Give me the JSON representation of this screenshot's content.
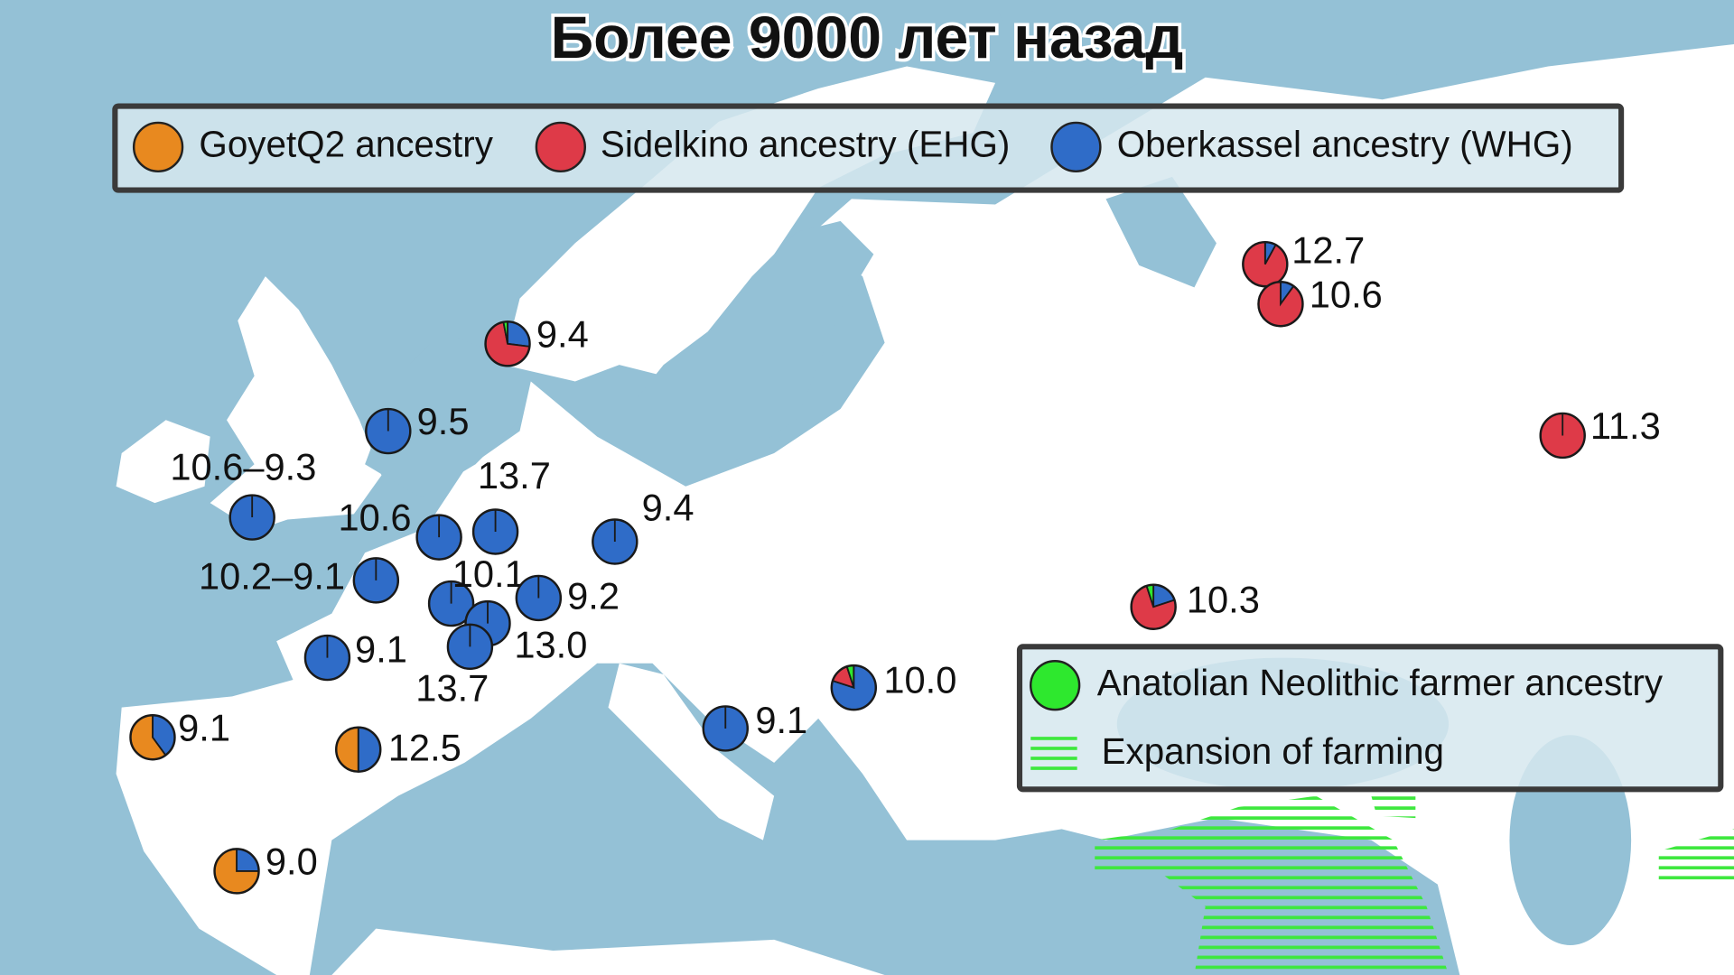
{
  "title": "Более 9000 лет назад",
  "components": [
    {
      "name": "GoyetQ2 ancestry",
      "color": "#e8891f"
    },
    {
      "name": "Sidelkino ancestry (EHG)",
      "color": "#de3a48"
    },
    {
      "name": "Oberkassel ancestry (WHG)",
      "color": "#2f6cc8"
    },
    {
      "name": "Anatolian Neolithic farmer ancestry",
      "color": "#2ee82e"
    }
  ],
  "farming_label": "Expansion of farming",
  "farming_color": "#3ee83e",
  "sites": [
    {
      "label": "12.7",
      "ancestry": [
        0,
        92,
        8,
        0
      ]
    },
    {
      "label": "10.6",
      "ancestry": [
        0,
        90,
        10,
        0
      ]
    },
    {
      "label": "9.4",
      "ancestry": [
        0,
        70,
        27,
        3
      ]
    },
    {
      "label": "11.3",
      "ancestry": [
        0,
        100,
        0,
        0
      ]
    },
    {
      "label": "9.5",
      "ancestry": [
        0,
        0,
        100,
        0
      ]
    },
    {
      "label": "10.6–9.3",
      "ancestry": [
        0,
        0,
        100,
        0
      ]
    },
    {
      "label": "13.7",
      "ancestry": [
        0,
        0,
        100,
        0
      ]
    },
    {
      "label": "10.6",
      "ancestry": [
        0,
        0,
        100,
        0
      ]
    },
    {
      "label": "9.4",
      "ancestry": [
        0,
        0,
        100,
        0
      ]
    },
    {
      "label": "10.2–9.1",
      "ancestry": [
        0,
        0,
        100,
        0
      ]
    },
    {
      "label": "10.1",
      "ancestry": [
        0,
        0,
        100,
        0
      ]
    },
    {
      "label": "9.2",
      "ancestry": [
        0,
        0,
        100,
        0
      ]
    },
    {
      "label": "13.0",
      "ancestry": [
        0,
        0,
        100,
        0
      ]
    },
    {
      "label": "13.7",
      "ancestry": [
        0,
        0,
        100,
        0
      ]
    },
    {
      "label": "9.1",
      "ancestry": [
        0,
        0,
        100,
        0
      ]
    },
    {
      "label": "9.1",
      "ancestry": [
        60,
        0,
        40,
        0
      ]
    },
    {
      "label": "12.5",
      "ancestry": [
        50,
        0,
        50,
        0
      ]
    },
    {
      "label": "9.0",
      "ancestry": [
        75,
        0,
        25,
        0
      ]
    },
    {
      "label": "9.1",
      "ancestry": [
        0,
        0,
        100,
        0
      ]
    },
    {
      "label": "10.0",
      "ancestry": [
        0,
        15,
        80,
        5
      ]
    },
    {
      "label": "10.3",
      "ancestry": [
        0,
        75,
        20,
        5
      ]
    }
  ]
}
